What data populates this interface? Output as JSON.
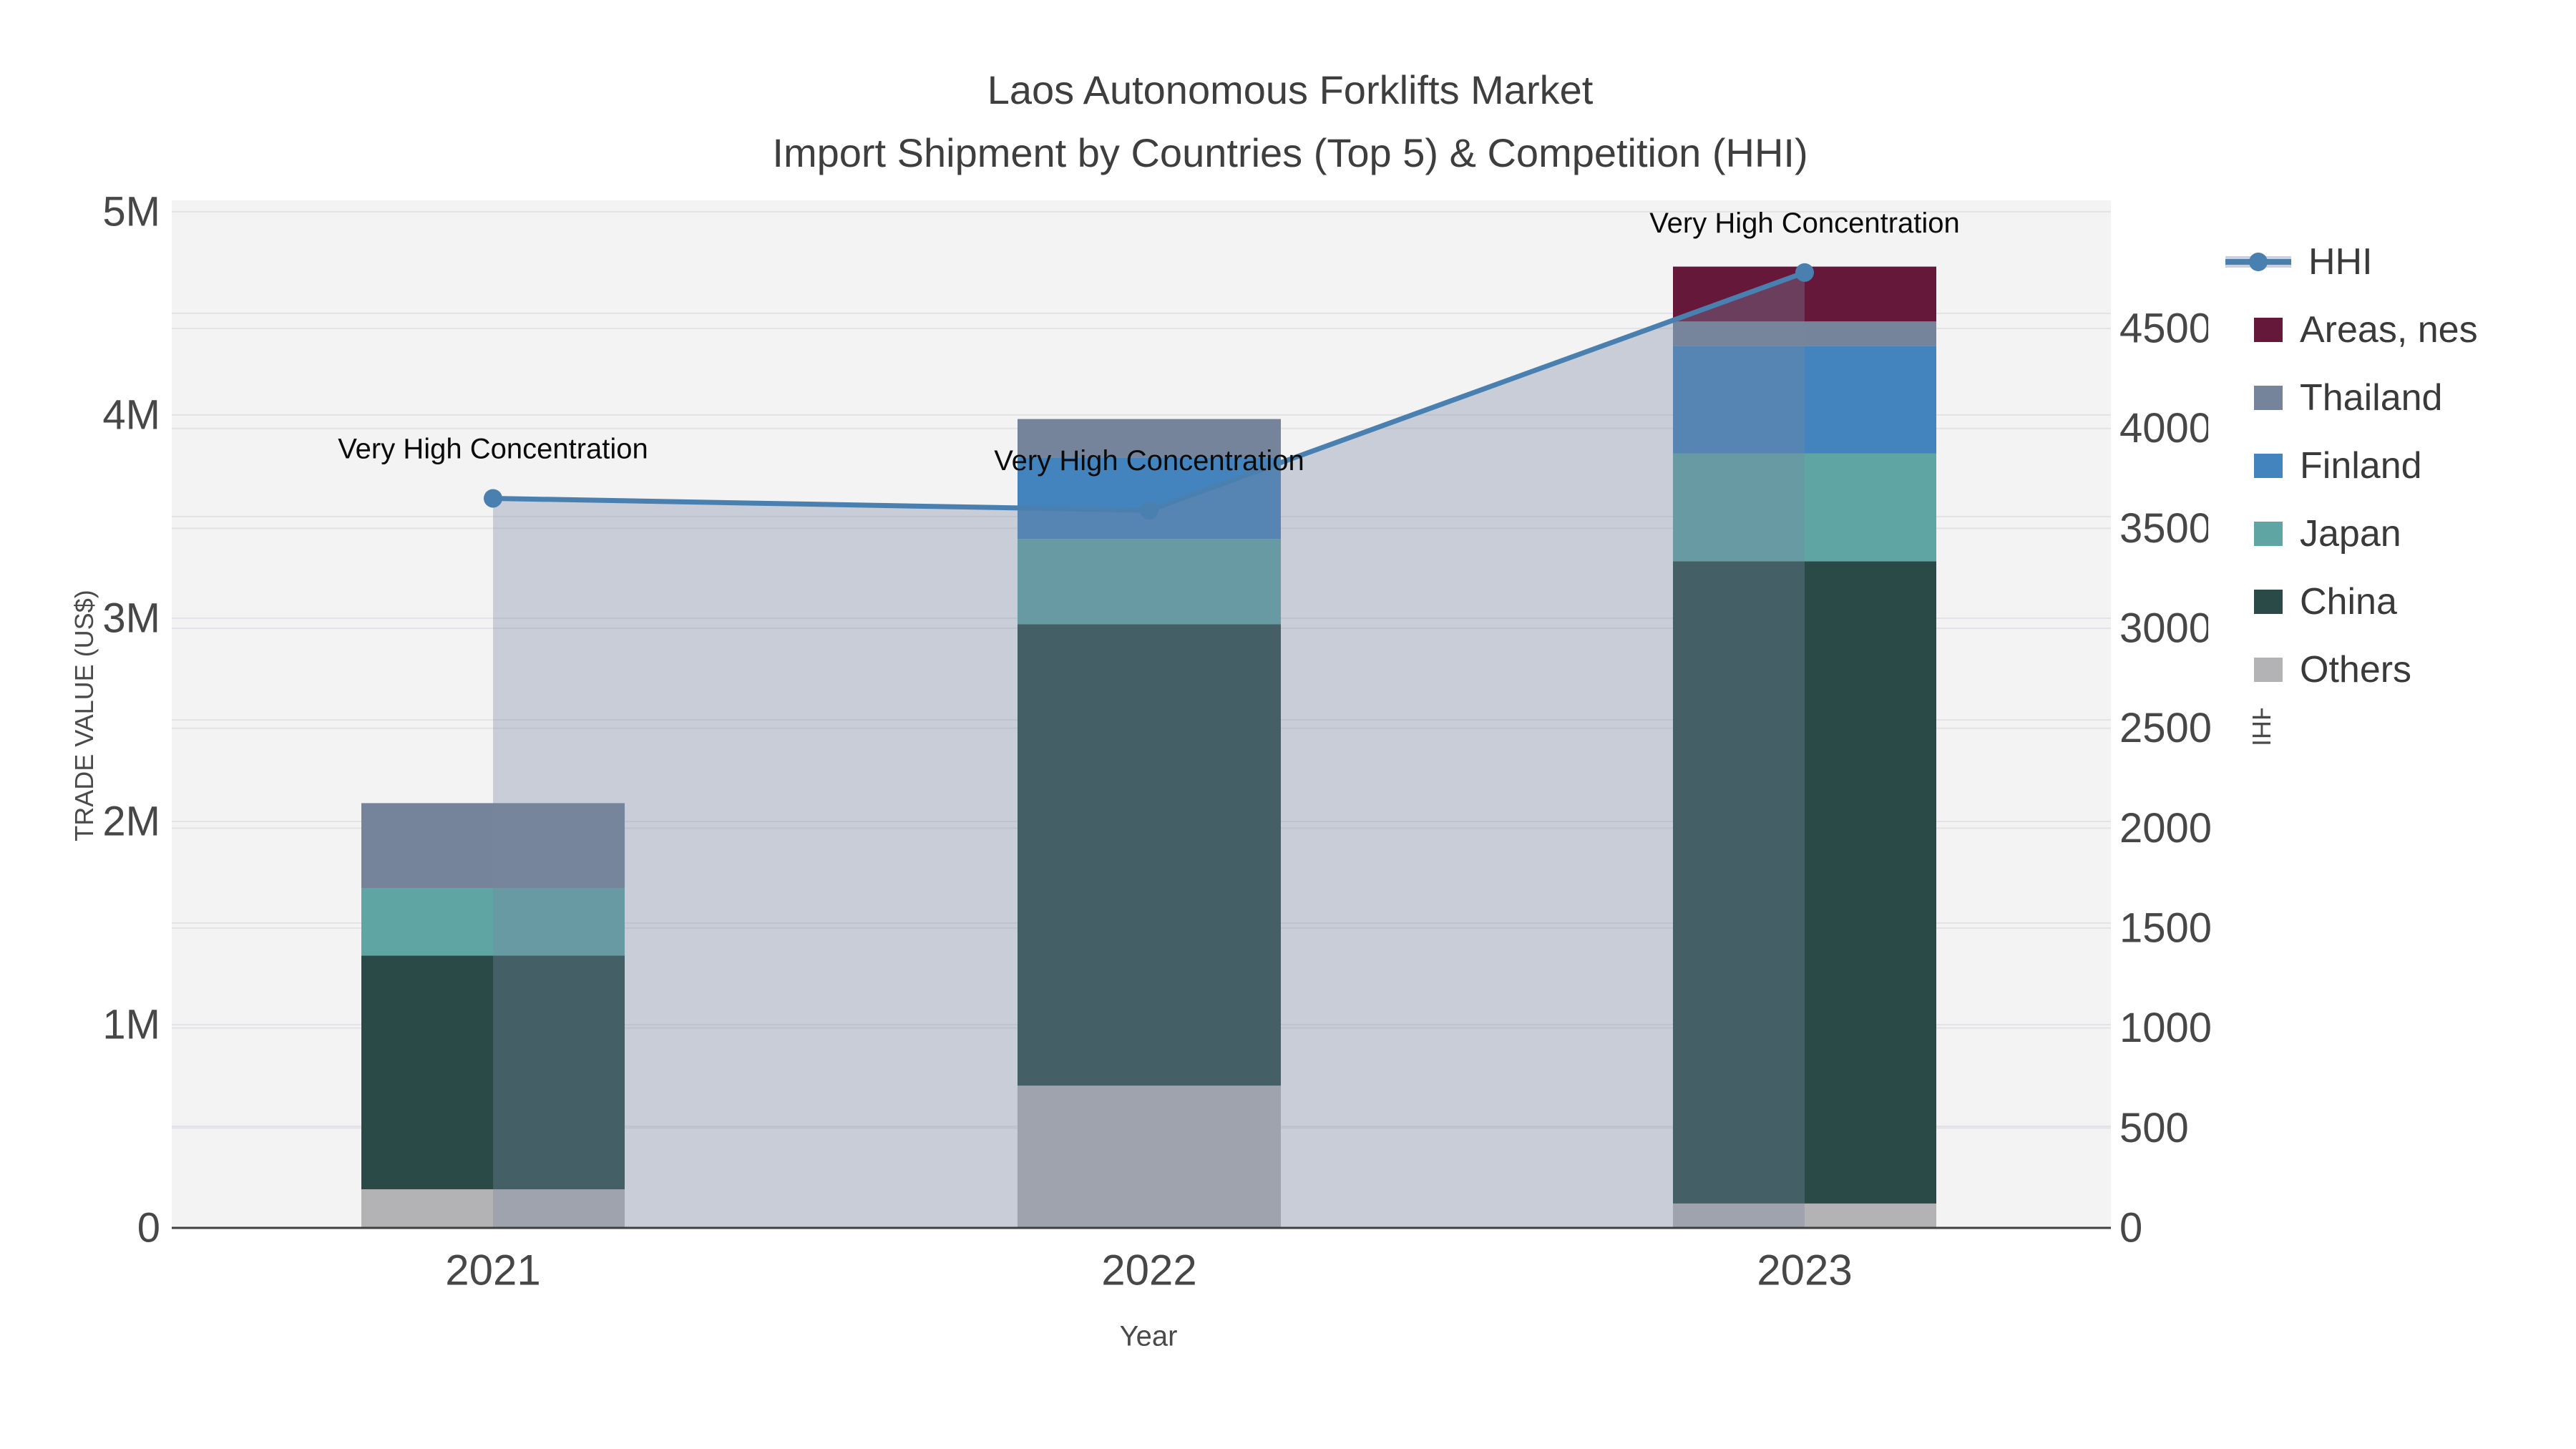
{
  "title": {
    "line1": "Laos Autonomous Forklifts Market",
    "line2": "Import Shipment by Countries (Top 5) & Competition (HHI)"
  },
  "chart_data": {
    "type": "bar+line",
    "subtype": "stacked bars (trade value, left axis) with HHI line + area fill (right axis)",
    "categories": [
      "2021",
      "2022",
      "2023"
    ],
    "series": [
      {
        "name": "Others",
        "color": "#B3B3B5",
        "values": [
          190000,
          700000,
          120000
        ]
      },
      {
        "name": "China",
        "color": "#2A4A48",
        "values": [
          1150000,
          2270000,
          3160000
        ]
      },
      {
        "name": "Japan",
        "color": "#5FA5A3",
        "values": [
          330000,
          420000,
          530000
        ]
      },
      {
        "name": "Finland",
        "color": "#4484BE",
        "values": [
          0,
          400000,
          530000
        ]
      },
      {
        "name": "Thailand",
        "color": "#75849A",
        "values": [
          420000,
          190000,
          120000
        ]
      },
      {
        "name": "Areas, nes",
        "color": "#651839",
        "values": [
          0,
          0,
          270000
        ]
      }
    ],
    "bar_totals_usd": [
      2090000,
      3980000,
      4730000
    ],
    "line_series": {
      "name": "HHI",
      "color": "#4A80B0",
      "fill_color": "rgba(120,135,160,0.35)",
      "legend_band_color": "#CBD1DC",
      "values": [
        3650,
        3590,
        4780
      ]
    },
    "annotations": [
      {
        "text": "Very High Concentration",
        "category": "2021"
      },
      {
        "text": "Very High Concentration",
        "category": "2022"
      },
      {
        "text": "Very High Concentration",
        "category": "2023"
      }
    ],
    "x_axis": {
      "label": "Year",
      "tick_labels": [
        "2021",
        "2022",
        "2023"
      ]
    },
    "y_left": {
      "label": "TRADE VALUE (US$)",
      "tick_labels": [
        "0",
        "1M",
        "2M",
        "3M",
        "4M",
        "5M"
      ],
      "tick_values": [
        0,
        1000000,
        2000000,
        3000000,
        4000000,
        5000000
      ],
      "grid_step": 500000,
      "range": [
        0,
        5056000
      ]
    },
    "y_right": {
      "label": "HHI",
      "tick_labels": [
        "0",
        "500",
        "1000",
        "1500",
        "2000",
        "2500",
        "3000",
        "3500",
        "4000",
        "4500"
      ],
      "tick_values": [
        0,
        500,
        1000,
        1500,
        2000,
        2500,
        3000,
        3500,
        4000,
        4500
      ],
      "range": [
        0,
        5141
      ]
    },
    "legend_order": [
      "HHI",
      "Areas, nes",
      "Thailand",
      "Finland",
      "Japan",
      "China",
      "Others"
    ],
    "grid": true,
    "legend_position": "right",
    "plot_bg": "#F3F3F4",
    "grid_color": "#E3E3E7",
    "axis_line_color": "#3F3F3F",
    "tick_color": "#474747",
    "annotation_color": "#0B0B0B"
  }
}
